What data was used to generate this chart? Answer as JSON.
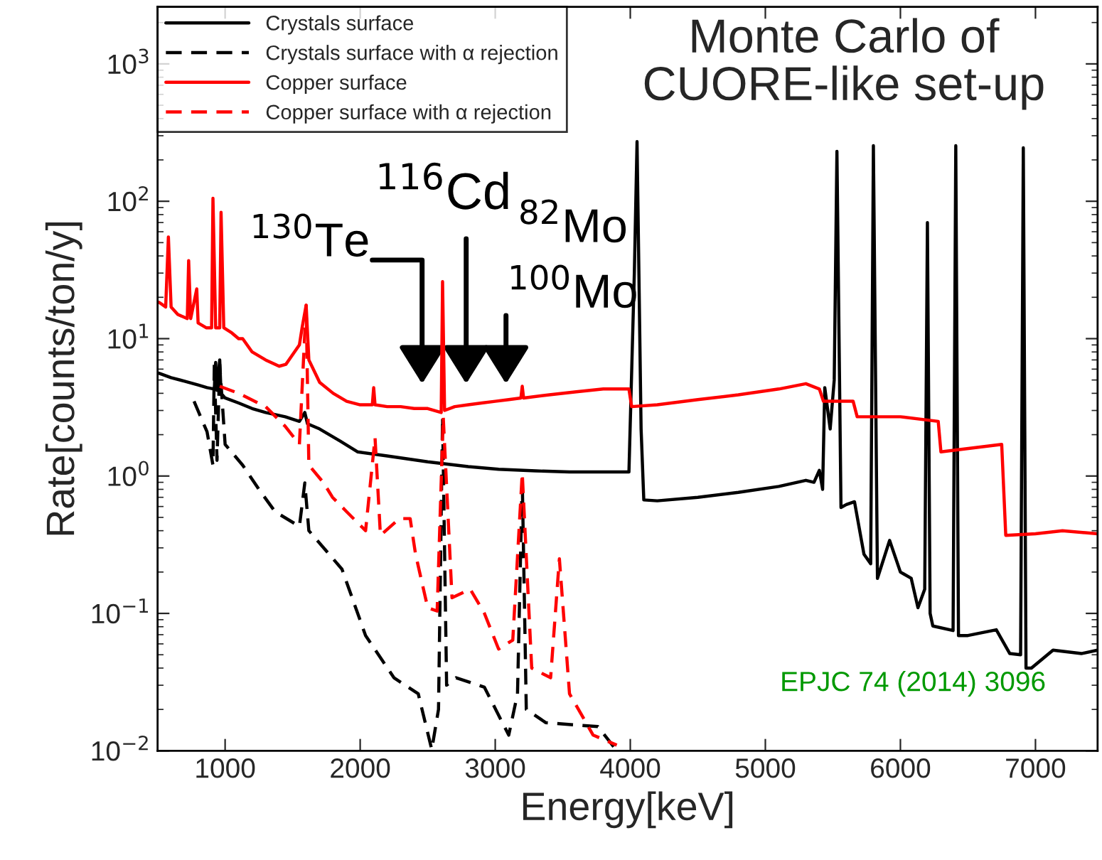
{
  "chart_data": {
    "type": "line",
    "title": "Monte Carlo of\nCUORE-like set-up",
    "xlabel": "Energy[keV]",
    "ylabel": "Rate[counts/ton/y]",
    "log": "y",
    "xlim": [
      500,
      7460
    ],
    "ylim": [
      0.01,
      2600
    ],
    "xticks": [
      1000,
      2000,
      3000,
      4000,
      5000,
      6000,
      7000
    ],
    "yticks": [
      {
        "value": 0.01,
        "label": "10$^{−2}$"
      },
      {
        "value": 0.1,
        "label": "10$^{−1}$"
      },
      {
        "value": 1,
        "label": "10$^{0}$"
      },
      {
        "value": 10,
        "label": "10$^{1}$"
      },
      {
        "value": 100,
        "label": "10$^{2}$"
      },
      {
        "value": 1000,
        "label": "10$^{3}$"
      }
    ],
    "grid": false,
    "legend": "top left",
    "marker": "none",
    "series": [
      {
        "name": "Crystals surface",
        "color": "#000000",
        "line_style": "solid",
        "x": [
          510,
          600,
          700,
          800,
          866,
          920,
          930,
          940,
          960,
          970,
          1000,
          1100,
          1200,
          1300,
          1445,
          1550,
          1590,
          1610,
          1700,
          1850,
          1980,
          2200,
          2500,
          2800,
          3025,
          3300,
          3550,
          3800,
          3990,
          4030,
          4050,
          4080,
          4100,
          4200,
          4500,
          4800,
          5100,
          5300,
          5360,
          5400,
          5424,
          5440,
          5480,
          5510,
          5530,
          5560,
          5600,
          5660,
          5730,
          5780,
          5800,
          5830,
          5920,
          6000,
          6080,
          6130,
          6180,
          6200,
          6220,
          6240,
          6390,
          6410,
          6430,
          6500,
          6710,
          6810,
          6890,
          6910,
          6930,
          6970,
          7130,
          7340,
          7460
        ],
        "values": [
          5.6,
          5.2,
          4.9,
          4.6,
          4.4,
          4.3,
          6.7,
          4.2,
          7.0,
          4.0,
          3.7,
          3.4,
          3.1,
          2.9,
          2.7,
          2.5,
          2.9,
          2.4,
          2.2,
          1.8,
          1.5,
          1.4,
          1.27,
          1.17,
          1.12,
          1.09,
          1.07,
          1.07,
          1.07,
          30,
          272,
          2.2,
          0.67,
          0.66,
          0.7,
          0.76,
          0.84,
          0.93,
          0.9,
          1.1,
          0.8,
          4.4,
          2.2,
          5,
          231,
          0.59,
          0.62,
          0.65,
          0.27,
          0.23,
          254,
          0.18,
          0.34,
          0.2,
          0.18,
          0.11,
          0.15,
          70,
          0.1,
          0.081,
          0.075,
          254,
          0.069,
          0.069,
          0.076,
          0.051,
          0.05,
          245,
          0.04,
          0.04,
          0.054,
          0.051,
          0.054
        ]
      },
      {
        "name": "Crystals surface with α rejection",
        "color": "#000000",
        "line_style": "dashed",
        "x": [
          770,
          866,
          910,
          920,
          940,
          960,
          1000,
          1130,
          1250,
          1370,
          1550,
          1590,
          1620,
          1865,
          2040,
          2250,
          2430,
          2530,
          2580,
          2610,
          2640,
          2710,
          2920,
          3100,
          3165,
          3200,
          3230,
          3375,
          3760,
          3900
        ],
        "values": [
          3.5,
          2.1,
          1.2,
          6.5,
          1.3,
          6.5,
          1.7,
          1.2,
          0.8,
          0.55,
          0.43,
          0.89,
          0.4,
          0.21,
          0.069,
          0.034,
          0.026,
          0.0102,
          0.02,
          2.7,
          0.03,
          0.034,
          0.029,
          0.013,
          0.026,
          0.95,
          0.02,
          0.016,
          0.015,
          0.01
        ]
      },
      {
        "name": "Copper surface",
        "color": "#ff0000",
        "line_style": "solid",
        "x": [
          510,
          560,
          580,
          600,
          650,
          720,
          730,
          745,
          790,
          800,
          860,
          900,
          910,
          930,
          960,
          970,
          990,
          1050,
          1100,
          1130,
          1200,
          1300,
          1400,
          1450,
          1550,
          1570,
          1600,
          1620,
          1700,
          1800,
          1900,
          2000,
          2090,
          2100,
          2110,
          2200,
          2300,
          2400,
          2500,
          2600,
          2610,
          2625,
          2700,
          2800,
          2900,
          3000,
          3100,
          3190,
          3200,
          3210,
          3400,
          3600,
          3800,
          3990,
          4010,
          4200,
          4500,
          4800,
          5100,
          5300,
          5400,
          5430,
          5650,
          5680,
          6000,
          6280,
          6300,
          6750,
          6780,
          7000,
          7200,
          7460
        ],
        "values": [
          18.4,
          17,
          55,
          17,
          15,
          14,
          37,
          14,
          23,
          13,
          12,
          12,
          105,
          12,
          12,
          83,
          12,
          11,
          10,
          10,
          8,
          7,
          6.3,
          6.5,
          9,
          12,
          17.5,
          7,
          4.8,
          4,
          3.5,
          3.3,
          3.3,
          4.4,
          3.3,
          3.2,
          3.2,
          3.1,
          3.1,
          2.9,
          26,
          3.0,
          3.2,
          3.3,
          3.4,
          3.5,
          3.6,
          3.7,
          4.5,
          3.7,
          3.9,
          4.1,
          4.3,
          4.3,
          3.2,
          3.3,
          3.6,
          3.9,
          4.3,
          4.7,
          4.3,
          3.5,
          3.5,
          2.7,
          2.7,
          2.5,
          1.5,
          1.7,
          0.37,
          0.38,
          0.4,
          0.38
        ]
      },
      {
        "name": "Copper surface with α rejection",
        "color": "#ff0000",
        "line_style": "dashed",
        "x": [
          960,
          1100,
          1300,
          1445,
          1550,
          1600,
          1620,
          1730,
          1795,
          1900,
          2040,
          2110,
          2150,
          2290,
          2370,
          2410,
          2500,
          2570,
          2615,
          2680,
          2815,
          2920,
          3025,
          3130,
          3200,
          3270,
          3410,
          3475,
          3550,
          3725,
          3900
        ],
        "values": [
          4.5,
          4.0,
          3.2,
          2.3,
          1.7,
          17.5,
          1.2,
          0.89,
          0.7,
          0.55,
          0.4,
          1.9,
          0.37,
          0.49,
          0.49,
          0.27,
          0.11,
          0.104,
          2.7,
          0.13,
          0.15,
          0.1,
          0.055,
          0.064,
          1.05,
          0.04,
          0.034,
          0.25,
          0.026,
          0.013,
          0.011
        ]
      }
    ],
    "annotations": [
      "$^{130}$Te",
      "$^{116}$Cd",
      "$^{82}$Mo",
      "$^{100}$Mo",
      "EPJC 74 (2014) 3096"
    ]
  }
}
